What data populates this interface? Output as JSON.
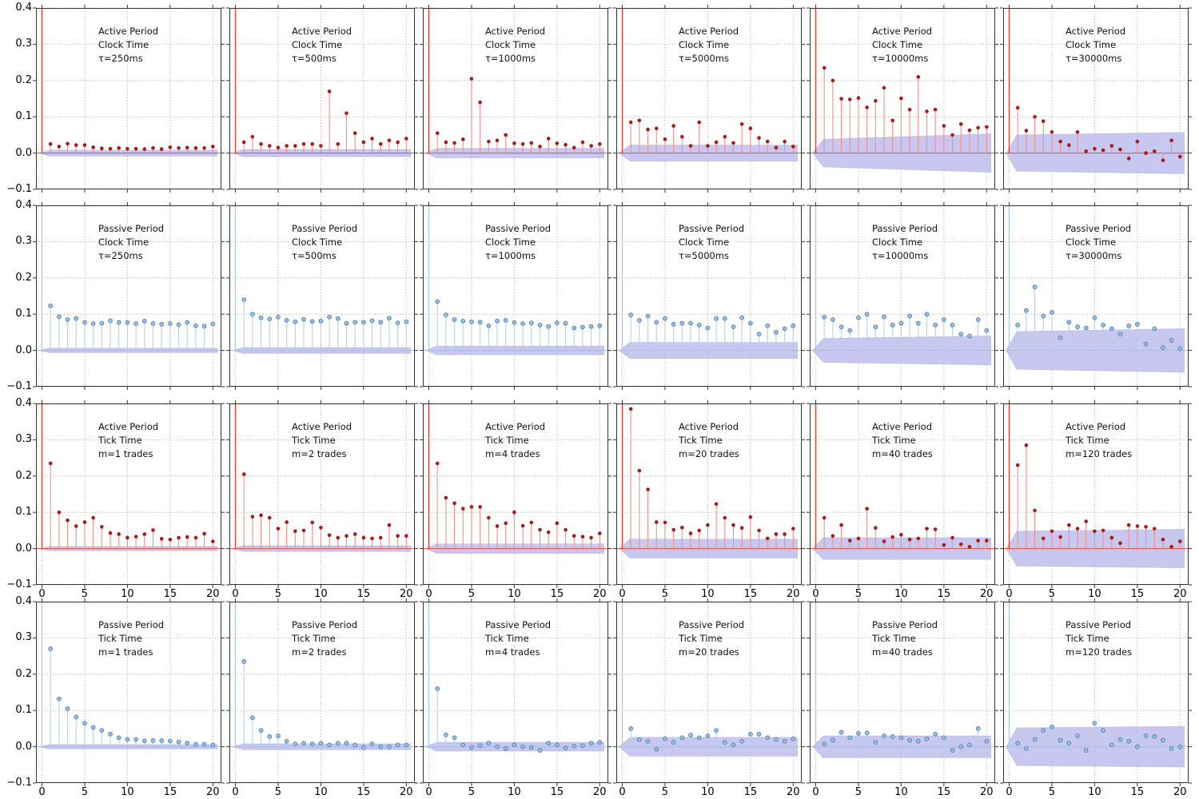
{
  "figure": {
    "background": "#ffffff"
  },
  "chart_data": {
    "type": "stem_grid",
    "description": "4x6 grid of autocorrelation stem plots with shaded confidence bands; lag-0 stem (value 1.0) clipped at top of axes",
    "grid": {
      "rows": 4,
      "cols": 6
    },
    "xlim": [
      -0.7,
      21.0
    ],
    "ylim": [
      -0.1,
      0.4
    ],
    "xticks": [
      0,
      5,
      10,
      15,
      20
    ],
    "yticks": [
      0.4,
      0.3,
      0.2,
      0.1,
      0.0,
      -0.1
    ],
    "x_label_rows": [
      2,
      3
    ],
    "lag0_clipped": true,
    "colors": {
      "active_stem": "#f0918a",
      "active_marker": "#a51c1c",
      "active_axis_line": "#e03b34",
      "active_zero_line": "#d9534b",
      "passive_stem": "#b7d0ea",
      "passive_marker_fill": "#9dbfe0",
      "passive_marker_edge": "#4a7fb5",
      "passive_axis_line": "#a9c9e8",
      "passive_zero_line": "#9ec4de",
      "band_fill": "#b9b9ec",
      "band_edge": "#a8a8e0",
      "grid": "#9b9b9b",
      "frame": "#333333",
      "text": "#111111"
    },
    "panels": [
      {
        "row": 0,
        "col": 0,
        "series": "active",
        "title_lines": [
          "Active Period",
          "Clock Time",
          "τ=250ms"
        ],
        "band": [
          0.008,
          0.008
        ],
        "values": [
          0.025,
          0.018,
          0.026,
          0.022,
          0.022,
          0.016,
          0.013,
          0.012,
          0.014,
          0.012,
          0.012,
          0.011,
          0.014,
          0.011,
          0.016,
          0.014,
          0.015,
          0.014,
          0.014,
          0.018
        ]
      },
      {
        "row": 0,
        "col": 1,
        "series": "active",
        "title_lines": [
          "Active Period",
          "Clock Time",
          "τ=500ms"
        ],
        "band": [
          0.01,
          0.01
        ],
        "values": [
          0.03,
          0.045,
          0.025,
          0.02,
          0.015,
          0.02,
          0.02,
          0.025,
          0.025,
          0.02,
          0.17,
          0.025,
          0.11,
          0.055,
          0.03,
          0.04,
          0.025,
          0.035,
          0.03,
          0.04
        ]
      },
      {
        "row": 0,
        "col": 2,
        "series": "active",
        "title_lines": [
          "Active Period",
          "Clock Time",
          "τ=1000ms"
        ],
        "band": [
          0.013,
          0.013
        ],
        "values": [
          0.055,
          0.03,
          0.028,
          0.038,
          0.205,
          0.14,
          0.032,
          0.035,
          0.05,
          0.027,
          0.025,
          0.028,
          0.018,
          0.04,
          0.027,
          0.023,
          0.015,
          0.03,
          0.02,
          0.025
        ]
      },
      {
        "row": 0,
        "col": 3,
        "series": "active",
        "title_lines": [
          "Active Period",
          "Clock Time",
          "τ=5000ms"
        ],
        "band": [
          0.022,
          0.022
        ],
        "values": [
          0.085,
          0.09,
          0.065,
          0.068,
          0.038,
          0.075,
          0.045,
          0.02,
          0.085,
          0.02,
          0.03,
          0.045,
          0.028,
          0.08,
          0.068,
          0.042,
          0.032,
          0.015,
          0.032,
          0.018
        ]
      },
      {
        "row": 0,
        "col": 4,
        "series": "active",
        "title_lines": [
          "Active Period",
          "Clock Time",
          "τ=10000ms"
        ],
        "band": [
          0.038,
          0.053
        ],
        "values": [
          0.235,
          0.2,
          0.15,
          0.148,
          0.152,
          0.126,
          0.144,
          0.18,
          0.09,
          0.151,
          0.12,
          0.21,
          0.115,
          0.12,
          0.075,
          0.05,
          0.08,
          0.063,
          0.07,
          0.072
        ]
      },
      {
        "row": 0,
        "col": 5,
        "series": "active",
        "title_lines": [
          "Active Period",
          "Clock Time",
          "τ=30000ms"
        ],
        "band": [
          0.05,
          0.057
        ],
        "values": [
          0.125,
          0.062,
          0.1,
          0.088,
          0.058,
          0.032,
          0.022,
          0.058,
          0.005,
          0.012,
          0.008,
          0.02,
          0.01,
          -0.015,
          0.032,
          0.0,
          0.005,
          -0.02,
          0.035,
          -0.01
        ]
      },
      {
        "row": 1,
        "col": 0,
        "series": "passive",
        "title_lines": [
          "Passive Period",
          "Clock Time",
          "τ=250ms"
        ],
        "band": [
          0.006,
          0.006
        ],
        "values": [
          0.123,
          0.093,
          0.085,
          0.088,
          0.077,
          0.074,
          0.075,
          0.082,
          0.077,
          0.077,
          0.074,
          0.081,
          0.074,
          0.072,
          0.074,
          0.071,
          0.077,
          0.068,
          0.067,
          0.073
        ]
      },
      {
        "row": 1,
        "col": 1,
        "series": "passive",
        "title_lines": [
          "Passive Period",
          "Clock Time",
          "τ=500ms"
        ],
        "band": [
          0.008,
          0.008
        ],
        "values": [
          0.14,
          0.1,
          0.09,
          0.087,
          0.092,
          0.083,
          0.079,
          0.086,
          0.08,
          0.081,
          0.092,
          0.088,
          0.075,
          0.078,
          0.078,
          0.082,
          0.078,
          0.089,
          0.076,
          0.079
        ]
      },
      {
        "row": 1,
        "col": 2,
        "series": "passive",
        "title_lines": [
          "Passive Period",
          "Clock Time",
          "τ=1000ms"
        ],
        "band": [
          0.012,
          0.012
        ],
        "values": [
          0.135,
          0.098,
          0.085,
          0.081,
          0.079,
          0.078,
          0.068,
          0.081,
          0.083,
          0.077,
          0.074,
          0.076,
          0.07,
          0.066,
          0.076,
          0.075,
          0.062,
          0.064,
          0.066,
          0.068
        ]
      },
      {
        "row": 1,
        "col": 3,
        "series": "passive",
        "title_lines": [
          "Passive Period",
          "Clock Time",
          "τ=5000ms"
        ],
        "band": [
          0.022,
          0.022
        ],
        "values": [
          0.098,
          0.083,
          0.095,
          0.078,
          0.088,
          0.072,
          0.075,
          0.075,
          0.07,
          0.062,
          0.088,
          0.088,
          0.065,
          0.09,
          0.075,
          0.045,
          0.068,
          0.05,
          0.06,
          0.068
        ]
      },
      {
        "row": 1,
        "col": 4,
        "series": "passive",
        "title_lines": [
          "Passive Period",
          "Clock Time",
          "τ=10000ms"
        ],
        "band": [
          0.033,
          0.04
        ],
        "values": [
          0.092,
          0.085,
          0.065,
          0.055,
          0.09,
          0.1,
          0.065,
          0.093,
          0.07,
          0.075,
          0.095,
          0.075,
          0.1,
          0.07,
          0.085,
          0.07,
          0.045,
          0.04,
          0.085,
          0.055
        ]
      },
      {
        "row": 1,
        "col": 5,
        "series": "passive",
        "title_lines": [
          "Passive Period",
          "Clock Time",
          "τ=30000ms"
        ],
        "band": [
          0.052,
          0.06
        ],
        "values": [
          0.07,
          0.11,
          0.175,
          0.095,
          0.105,
          0.035,
          0.078,
          0.065,
          0.062,
          0.09,
          0.07,
          0.06,
          0.045,
          0.068,
          0.072,
          0.018,
          0.06,
          0.008,
          0.028,
          0.005
        ]
      },
      {
        "row": 2,
        "col": 0,
        "series": "active",
        "title_lines": [
          "Active Period",
          "Tick Time",
          "m=1 trades"
        ],
        "band": [
          0.006,
          0.006
        ],
        "values": [
          0.235,
          0.1,
          0.078,
          0.062,
          0.073,
          0.085,
          0.06,
          0.043,
          0.04,
          0.03,
          0.033,
          0.04,
          0.051,
          0.027,
          0.025,
          0.03,
          0.032,
          0.03,
          0.041,
          0.02
        ]
      },
      {
        "row": 2,
        "col": 1,
        "series": "active",
        "title_lines": [
          "Active Period",
          "Tick Time",
          "m=2 trades"
        ],
        "band": [
          0.008,
          0.008
        ],
        "values": [
          0.205,
          0.088,
          0.092,
          0.085,
          0.055,
          0.073,
          0.048,
          0.05,
          0.072,
          0.058,
          0.037,
          0.03,
          0.035,
          0.04,
          0.03,
          0.028,
          0.03,
          0.065,
          0.035,
          0.035
        ]
      },
      {
        "row": 2,
        "col": 2,
        "series": "active",
        "title_lines": [
          "Active Period",
          "Tick Time",
          "m=4 trades"
        ],
        "band": [
          0.013,
          0.013
        ],
        "values": [
          0.235,
          0.14,
          0.125,
          0.11,
          0.115,
          0.115,
          0.085,
          0.062,
          0.07,
          0.1,
          0.063,
          0.072,
          0.052,
          0.045,
          0.07,
          0.052,
          0.035,
          0.033,
          0.03,
          0.042
        ]
      },
      {
        "row": 2,
        "col": 3,
        "series": "active",
        "title_lines": [
          "Active Period",
          "Tick Time",
          "m=20 trades"
        ],
        "band": [
          0.026,
          0.026
        ],
        "values": [
          0.385,
          0.215,
          0.163,
          0.073,
          0.072,
          0.052,
          0.058,
          0.042,
          0.05,
          0.065,
          0.123,
          0.085,
          0.065,
          0.057,
          0.087,
          0.05,
          0.028,
          0.04,
          0.04,
          0.055
        ]
      },
      {
        "row": 2,
        "col": 4,
        "series": "active",
        "title_lines": [
          "Active Period",
          "Tick Time",
          "m=40 trades"
        ],
        "band": [
          0.03,
          0.03
        ],
        "values": [
          0.085,
          0.035,
          0.065,
          0.022,
          0.028,
          0.11,
          0.057,
          0.02,
          0.032,
          0.038,
          0.025,
          0.028,
          0.055,
          0.053,
          0.01,
          0.03,
          0.012,
          0.005,
          0.022,
          0.022
        ]
      },
      {
        "row": 2,
        "col": 5,
        "series": "active",
        "title_lines": [
          "Active Period",
          "Tick Time",
          "m=120 trades"
        ],
        "band": [
          0.048,
          0.053
        ],
        "values": [
          0.23,
          0.285,
          0.105,
          0.028,
          0.048,
          0.032,
          0.065,
          0.055,
          0.075,
          0.048,
          0.05,
          0.03,
          0.015,
          0.065,
          0.062,
          0.06,
          0.055,
          0.025,
          0.005,
          0.02
        ]
      },
      {
        "row": 3,
        "col": 0,
        "series": "passive",
        "title_lines": [
          "Passive Period",
          "Tick Time",
          "m=1 trades"
        ],
        "band": [
          0.006,
          0.006
        ],
        "values": [
          0.27,
          0.132,
          0.105,
          0.082,
          0.065,
          0.053,
          0.045,
          0.035,
          0.025,
          0.02,
          0.02,
          0.016,
          0.017,
          0.017,
          0.016,
          0.013,
          0.01,
          0.007,
          0.007,
          0.005
        ]
      },
      {
        "row": 3,
        "col": 1,
        "series": "passive",
        "title_lines": [
          "Passive Period",
          "Tick Time",
          "m=2 trades"
        ],
        "band": [
          0.008,
          0.008
        ],
        "values": [
          0.235,
          0.08,
          0.045,
          0.028,
          0.03,
          0.015,
          0.008,
          0.01,
          0.008,
          0.01,
          0.005,
          0.01,
          0.01,
          0.005,
          -0.002,
          0.008,
          0.0,
          0.0,
          0.005,
          0.005
        ]
      },
      {
        "row": 3,
        "col": 2,
        "series": "passive",
        "title_lines": [
          "Passive Period",
          "Tick Time",
          "m=4 trades"
        ],
        "band": [
          0.012,
          0.012
        ],
        "values": [
          0.16,
          0.033,
          0.025,
          0.005,
          -0.002,
          0.003,
          0.01,
          0.0,
          -0.005,
          0.005,
          0.0,
          -0.002,
          -0.01,
          0.01,
          0.005,
          -0.003,
          0.002,
          0.003,
          0.01,
          0.012
        ]
      },
      {
        "row": 3,
        "col": 3,
        "series": "passive",
        "title_lines": [
          "Passive Period",
          "Tick Time",
          "m=20 trades"
        ],
        "band": [
          0.026,
          0.026
        ],
        "values": [
          0.05,
          0.02,
          0.015,
          -0.007,
          0.022,
          0.012,
          0.025,
          0.032,
          0.025,
          0.03,
          0.045,
          0.012,
          0.005,
          0.015,
          0.035,
          0.035,
          0.025,
          0.02,
          0.015,
          0.022
        ]
      },
      {
        "row": 3,
        "col": 4,
        "series": "passive",
        "title_lines": [
          "Passive Period",
          "Tick Time",
          "m=40 trades"
        ],
        "band": [
          0.03,
          0.03
        ],
        "values": [
          0.008,
          0.018,
          0.04,
          0.025,
          0.037,
          0.038,
          0.012,
          0.03,
          0.028,
          0.025,
          0.018,
          0.015,
          0.022,
          0.035,
          0.025,
          -0.01,
          0.0,
          0.005,
          0.05,
          0.015
        ]
      },
      {
        "row": 3,
        "col": 5,
        "series": "passive",
        "title_lines": [
          "Passive Period",
          "Tick Time",
          "m=120 trades"
        ],
        "band": [
          0.052,
          0.056
        ],
        "values": [
          0.01,
          -0.005,
          0.02,
          0.045,
          0.055,
          0.018,
          0.01,
          0.03,
          -0.01,
          0.065,
          0.045,
          0.005,
          0.02,
          0.015,
          0.0,
          0.03,
          0.028,
          0.018,
          -0.005,
          0.0
        ]
      }
    ]
  }
}
